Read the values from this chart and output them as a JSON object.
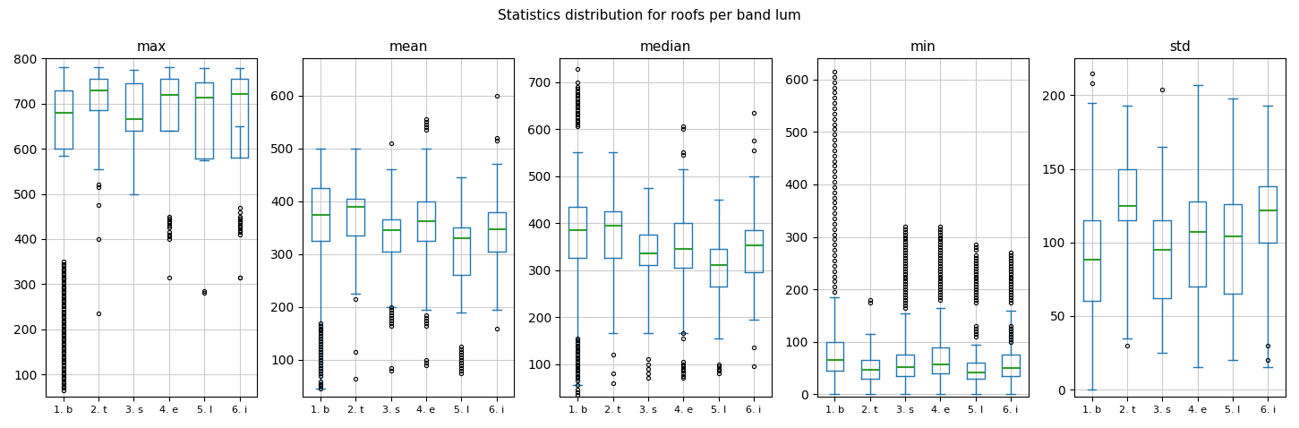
{
  "title": "Statistics distribution for roofs per band lum",
  "subplots": [
    "max",
    "mean",
    "median",
    "min",
    "std"
  ],
  "categories": [
    "1. b",
    "2. t",
    "3. s",
    "4. e",
    "5. l",
    "6. i"
  ],
  "box_color": "#1f77b4",
  "median_color": "#2ca02c",
  "flier_color": "black",
  "background_color": "#ffffff",
  "grid_color": "#cccccc",
  "max": {
    "whislo": [
      585,
      555,
      500,
      640,
      575,
      650
    ],
    "q1": [
      600,
      685,
      640,
      640,
      578,
      580
    ],
    "med": [
      680,
      730,
      665,
      720,
      713,
      722
    ],
    "q3": [
      730,
      755,
      745,
      756,
      748,
      755
    ],
    "whishi": [
      780,
      780,
      775,
      780,
      778,
      778
    ],
    "fliers_low": [
      [
        350,
        345,
        340,
        335,
        330,
        325,
        320,
        315,
        310,
        305,
        300,
        295,
        290,
        285,
        280,
        275,
        270,
        265,
        260,
        255,
        250,
        245,
        240,
        235,
        230,
        225,
        220,
        215,
        210,
        205,
        200,
        195,
        190,
        185,
        180,
        175,
        170,
        165,
        160,
        155,
        150,
        145,
        140,
        135,
        130,
        125,
        120,
        115,
        110,
        105,
        100,
        95,
        90,
        85,
        80,
        75,
        70,
        65
      ],
      [
        520,
        515,
        475,
        400,
        235
      ],
      [],
      [
        450,
        445,
        440,
        435,
        430,
        425,
        415,
        410,
        405,
        400,
        315
      ],
      [
        285,
        280
      ],
      [
        470,
        460,
        450,
        445,
        440,
        435,
        430,
        425,
        420,
        415,
        410,
        315,
        315
      ]
    ]
  },
  "mean": {
    "whislo": [
      45,
      225,
      200,
      195,
      190,
      195
    ],
    "q1": [
      325,
      335,
      305,
      325,
      260,
      305
    ],
    "med": [
      375,
      390,
      345,
      362,
      330,
      347
    ],
    "q3": [
      425,
      405,
      365,
      400,
      350,
      380
    ],
    "whishi": [
      500,
      500,
      460,
      500,
      445,
      470
    ],
    "fliers_low": [
      [
        170,
        165,
        160,
        155,
        150,
        145,
        140,
        135,
        130,
        125,
        120,
        115,
        110,
        105,
        100,
        95,
        90,
        85,
        80,
        75,
        70,
        60,
        55,
        50,
        45
      ],
      [
        215,
        115,
        65
      ],
      [
        510,
        200,
        195,
        190,
        185,
        180,
        175,
        170,
        165,
        85,
        80
      ],
      [
        555,
        550,
        545,
        540,
        535,
        185,
        180,
        175,
        170,
        165,
        100,
        95,
        90
      ],
      [
        125,
        120,
        115,
        110,
        105,
        100,
        95,
        90,
        85,
        80,
        75
      ],
      [
        600,
        520,
        515,
        160
      ]
    ]
  },
  "median": {
    "whislo": [
      55,
      165,
      165,
      165,
      155,
      195
    ],
    "q1": [
      325,
      325,
      310,
      305,
      265,
      295
    ],
    "med": [
      385,
      395,
      335,
      345,
      310,
      352
    ],
    "q3": [
      435,
      425,
      375,
      400,
      345,
      385
    ],
    "whishi": [
      550,
      550,
      475,
      515,
      450,
      500
    ],
    "fliers_low": [
      [
        728,
        700,
        690,
        685,
        680,
        675,
        670,
        665,
        660,
        655,
        650,
        645,
        640,
        635,
        630,
        625,
        620,
        615,
        610,
        605,
        155,
        150,
        145,
        140,
        135,
        130,
        125,
        120,
        115,
        110,
        105,
        100,
        95,
        90,
        85,
        80,
        75,
        70,
        65,
        55,
        45,
        40,
        35
      ],
      [
        120,
        80,
        60
      ],
      [
        110,
        100,
        90,
        80,
        70
      ],
      [
        600,
        605,
        550,
        545,
        165,
        155,
        105,
        100,
        95,
        90,
        85,
        80,
        75,
        70
      ],
      [
        100,
        95,
        90,
        85,
        80
      ],
      [
        635,
        575,
        555,
        135,
        95
      ]
    ]
  },
  "min": {
    "whislo": [
      0,
      0,
      0,
      0,
      0,
      0
    ],
    "q1": [
      45,
      30,
      35,
      40,
      30,
      35
    ],
    "med": [
      65,
      47,
      52,
      57,
      42,
      50
    ],
    "q3": [
      100,
      65,
      75,
      90,
      60,
      75
    ],
    "whishi": [
      185,
      115,
      155,
      165,
      95,
      160
    ],
    "fliers_high": [
      [
        615,
        605,
        595,
        585,
        575,
        565,
        555,
        545,
        535,
        525,
        515,
        505,
        495,
        485,
        475,
        465,
        455,
        445,
        435,
        425,
        415,
        405,
        395,
        385,
        375,
        365,
        355,
        345,
        335,
        325,
        315,
        305,
        295,
        285,
        275,
        265,
        255,
        245,
        235,
        225,
        215,
        205,
        195
      ],
      [
        180,
        175
      ],
      [
        320,
        315,
        310,
        305,
        300,
        295,
        290,
        285,
        280,
        275,
        270,
        265,
        260,
        255,
        250,
        245,
        240,
        235,
        230,
        225,
        220,
        215,
        210,
        205,
        200,
        195,
        190,
        185,
        180,
        175,
        170,
        165
      ],
      [
        320,
        315,
        310,
        305,
        300,
        295,
        290,
        285,
        280,
        275,
        270,
        265,
        260,
        255,
        250,
        245,
        240,
        235,
        230,
        225,
        220,
        215,
        210,
        205,
        200,
        195,
        190,
        185,
        180
      ],
      [
        285,
        280,
        275,
        265,
        260,
        255,
        250,
        245,
        240,
        235,
        230,
        225,
        220,
        215,
        210,
        205,
        200,
        195,
        190,
        185,
        180,
        175,
        130,
        125,
        120,
        115,
        110
      ],
      [
        270,
        265,
        260,
        255,
        250,
        245,
        240,
        235,
        230,
        225,
        220,
        215,
        210,
        205,
        200,
        195,
        190,
        185,
        180,
        175,
        130,
        125,
        120,
        115,
        110,
        105,
        100
      ]
    ]
  },
  "std": {
    "whislo": [
      0,
      35,
      25,
      15,
      20,
      15
    ],
    "q1": [
      60,
      115,
      62,
      70,
      65,
      100
    ],
    "med": [
      88,
      125,
      95,
      107,
      104,
      122
    ],
    "q3": [
      115,
      150,
      115,
      128,
      126,
      138
    ],
    "whishi": [
      195,
      193,
      165,
      207,
      198,
      193
    ],
    "fliers_high": [
      [
        215,
        208
      ],
      [
        30
      ],
      [
        204
      ],
      [],
      [],
      [
        30,
        20
      ]
    ]
  }
}
